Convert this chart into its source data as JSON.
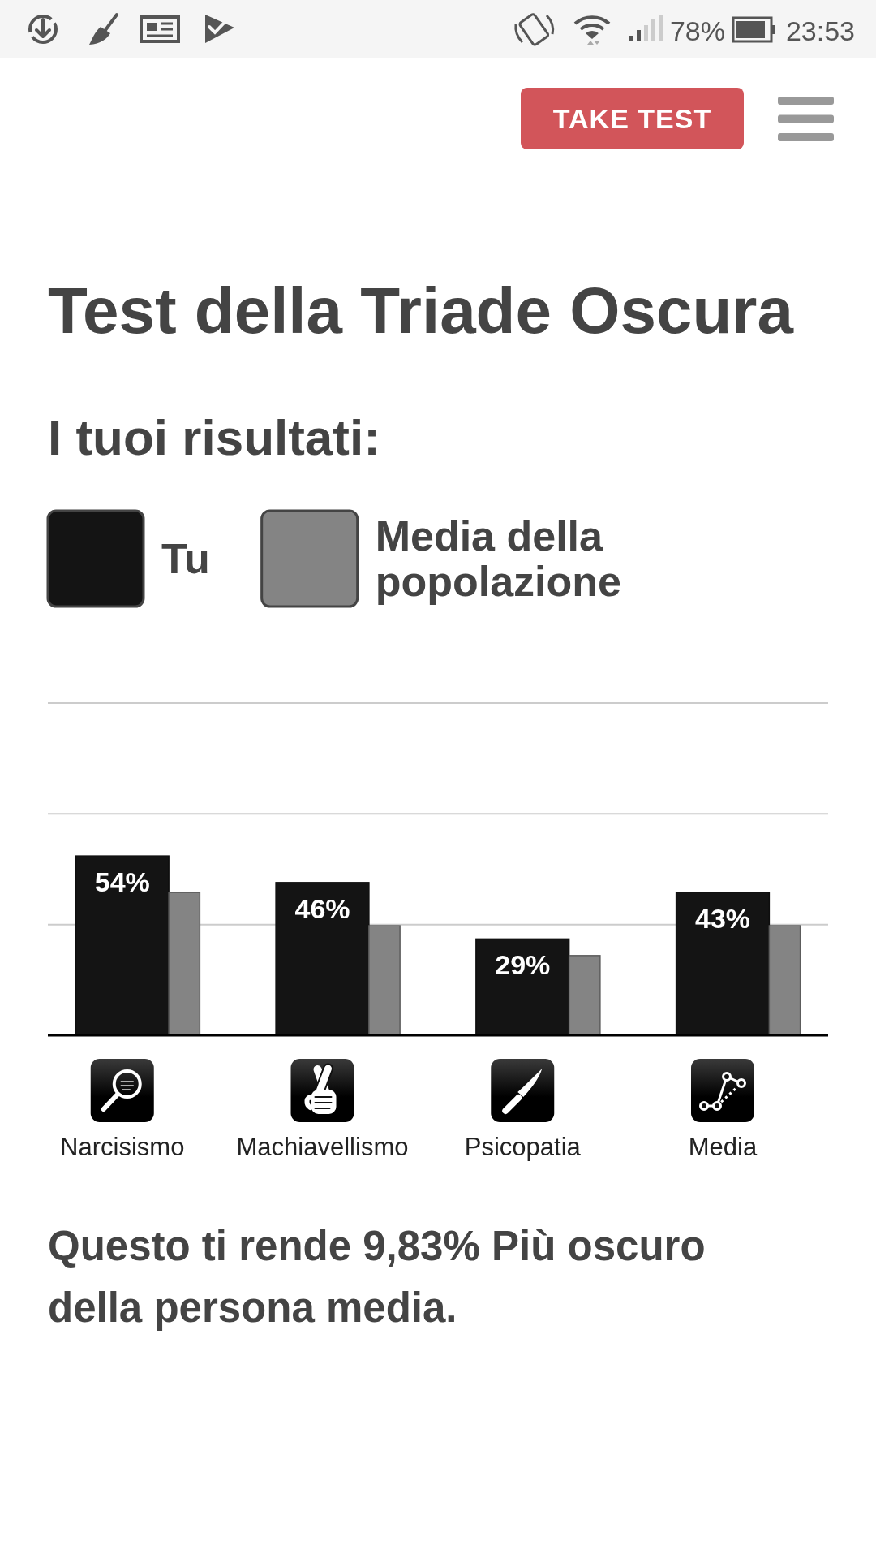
{
  "chart_data": {
    "type": "bar",
    "title": "Test della Triade Oscura",
    "subtitle": "I tuoi risultati:",
    "categories": [
      "Narcisismo",
      "Machiavellismo",
      "Psicopatia",
      "Media"
    ],
    "series": [
      {
        "name": "Tu",
        "color": "#141414",
        "values": [
          54,
          46,
          29,
          43
        ],
        "value_labels": [
          "54%",
          "46%",
          "29%",
          "43%"
        ]
      },
      {
        "name": "Media della popolazione",
        "color": "#848484",
        "values": [
          43,
          33,
          24,
          33
        ]
      }
    ],
    "ylim": [
      0,
      100
    ],
    "yticks": [
      {
        "value": 33.3,
        "label": null
      },
      {
        "value": 66.7,
        "label": null
      },
      {
        "value": 100,
        "label": null
      }
    ],
    "grid": "y",
    "tick_labels": "x",
    "legend": "top left",
    "annotations": [
      "Questo ti rende 9,83% Più oscuro della persona media.",
      "TAKE TEST",
      "78%",
      "23:53"
    ]
  }
}
